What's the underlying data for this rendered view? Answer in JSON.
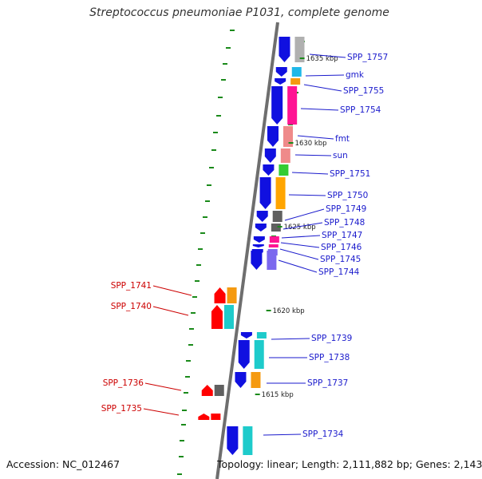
{
  "title": "Streptococcus pneumoniae P1031, complete genome",
  "footer": {
    "accession": "Accession: NC_012467",
    "topology": "Topology: linear; Length: 2,111,882 bp; Genes: 2,143"
  },
  "colors": {
    "forward_gene": "#1010e0",
    "reverse_gene": "#ff0000",
    "forward_label": "#1a1acc",
    "reverse_label": "#cc0000",
    "backbone": "#808080",
    "gc_tick": "#1a8a1a"
  },
  "kbp_ticks": [
    {
      "label": "1635 kbp",
      "pos": 1635
    },
    {
      "label": "1630 kbp",
      "pos": 1630
    },
    {
      "label": "1625 kbp",
      "pos": 1625
    },
    {
      "label": "1620 kbp",
      "pos": 1620
    },
    {
      "label": "1615 kbp",
      "pos": 1615
    }
  ],
  "genes": [
    {
      "label": "SPP_1757",
      "strand": "+",
      "cog": "#b0b0b0"
    },
    {
      "label": "gmk",
      "strand": "+",
      "cog": "#20b8e8"
    },
    {
      "label": "SPP_1755",
      "strand": "+",
      "cog": "#f59a10"
    },
    {
      "label": "SPP_1754",
      "strand": "+",
      "cog": "#ff1493"
    },
    {
      "label": "fmt",
      "strand": "+",
      "cog": "#ef8a8a"
    },
    {
      "label": "sun",
      "strand": "+",
      "cog": "#ef8a8a"
    },
    {
      "label": "SPP_1751",
      "strand": "+",
      "cog": "#33cc33"
    },
    {
      "label": "SPP_1750",
      "strand": "+",
      "cog": "#ffa500"
    },
    {
      "label": "SPP_1749",
      "strand": "+",
      "cog": "#606060"
    },
    {
      "label": "SPP_1748",
      "strand": "+",
      "cog": "#606060"
    },
    {
      "label": "SPP_1747",
      "strand": "+",
      "cog": "#ff1493"
    },
    {
      "label": "SPP_1746",
      "strand": "+",
      "cog": "#ff1493"
    },
    {
      "label": "SPP_1745",
      "strand": "+",
      "cog": "#7b68ee"
    },
    {
      "label": "SPP_1744",
      "strand": "+",
      "cog": "#7b68ee"
    },
    {
      "label": "SPP_1741",
      "strand": "-",
      "cog": "#f59a10"
    },
    {
      "label": "SPP_1740",
      "strand": "-",
      "cog": "#1ecbcb"
    },
    {
      "label": "SPP_1739",
      "strand": "+",
      "cog": "#1ecbcb"
    },
    {
      "label": "SPP_1738",
      "strand": "+",
      "cog": "#1ecbcb"
    },
    {
      "label": "SPP_1737",
      "strand": "+",
      "cog": "#f59a10"
    },
    {
      "label": "SPP_1736",
      "strand": "-",
      "cog": "#606060"
    },
    {
      "label": "SPP_1735",
      "strand": "-",
      "cog": "#ff0000"
    },
    {
      "label": "SPP_1734",
      "strand": "+",
      "cog": "#1ecbcb"
    }
  ]
}
